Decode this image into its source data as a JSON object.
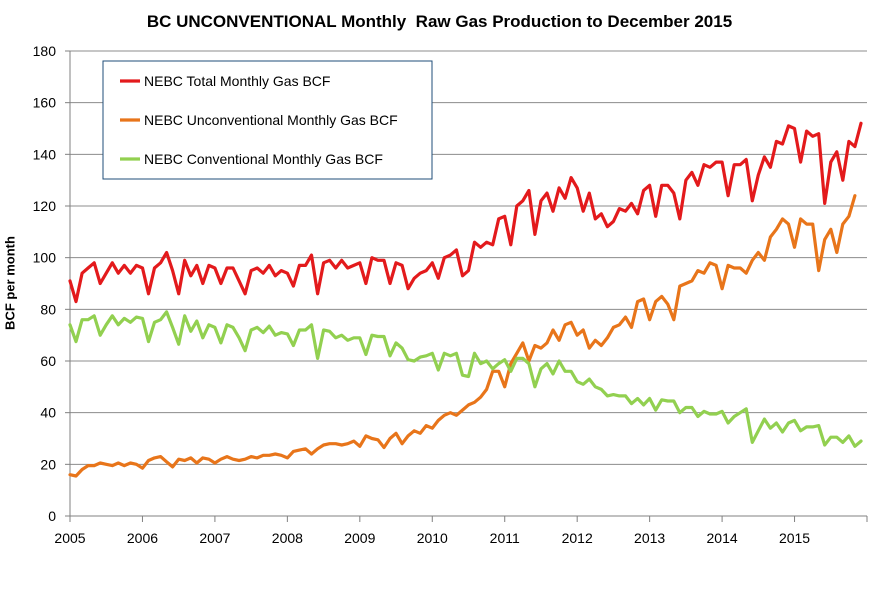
{
  "chart_data": {
    "type": "line",
    "title": "BC UNCONVENTIONAL Monthly  Raw Gas Production to December 2015",
    "xlabel": "",
    "ylabel": "BCF per month",
    "ylim": [
      0,
      180
    ],
    "yticks": [
      0,
      20,
      40,
      60,
      80,
      100,
      120,
      140,
      160,
      180
    ],
    "xticks": [
      "2005",
      "2006",
      "2007",
      "2008",
      "2009",
      "2010",
      "2011",
      "2012",
      "2013",
      "2014",
      "2015"
    ],
    "x_start_year": 2005,
    "x_end_year": 2016,
    "grid": "horizontal",
    "legend_position": "top-left",
    "series": [
      {
        "name": "NEBC Total Monthly Gas BCF",
        "color": "#e31a1c",
        "values": [
          91,
          83,
          94,
          96,
          98,
          90,
          94,
          98,
          94,
          97,
          94,
          97,
          96,
          86,
          96,
          98,
          102,
          95,
          86,
          99,
          93,
          97,
          90,
          97,
          96,
          90,
          96,
          96,
          91,
          86,
          95,
          96,
          94,
          97,
          93,
          95,
          94,
          89,
          97,
          97,
          101,
          86,
          98,
          99,
          96,
          99,
          96,
          97,
          98,
          90,
          100,
          99,
          99,
          90,
          98,
          97,
          88,
          92,
          94,
          95,
          98,
          92,
          100,
          101,
          103,
          93,
          95,
          106,
          104,
          106,
          105,
          115,
          116,
          105,
          120,
          122,
          126,
          109,
          122,
          125,
          118,
          127,
          123,
          131,
          127,
          118,
          125,
          115,
          117,
          112,
          114,
          119,
          118,
          121,
          117,
          126,
          128,
          116,
          128,
          128,
          125,
          115,
          130,
          133,
          128,
          136,
          135,
          137,
          137,
          124,
          136,
          136,
          138,
          122,
          132,
          139,
          135,
          145,
          144,
          151,
          150,
          137,
          149,
          147,
          148,
          121,
          137,
          141,
          130,
          145,
          143,
          152
        ]
      },
      {
        "name": "NEBC Unconventional Monthly Gas BCF",
        "color": "#e8751a",
        "values": [
          16,
          15.5,
          18,
          19.5,
          19.5,
          20.5,
          20,
          19.5,
          20.5,
          19.5,
          20.5,
          20,
          18.5,
          21.5,
          22.5,
          23,
          21,
          19,
          22,
          21.5,
          22.5,
          20.5,
          22.5,
          22,
          20.5,
          22,
          23,
          22,
          21.5,
          22,
          23,
          22.5,
          23.5,
          23.5,
          24,
          23.5,
          22.5,
          25,
          25.5,
          26,
          24,
          26,
          27.5,
          28,
          28,
          27.5,
          28,
          29,
          27,
          31,
          30,
          29.5,
          26.5,
          30,
          32,
          28,
          31,
          33,
          32,
          35,
          34,
          37,
          39,
          40,
          39,
          41,
          43,
          44,
          46,
          49,
          56,
          56,
          50,
          59,
          63,
          67,
          60,
          66,
          65,
          67,
          72,
          68,
          74,
          75,
          70,
          72,
          65,
          68,
          66,
          69,
          73,
          74,
          77,
          73,
          83,
          84,
          76,
          83,
          85,
          82,
          76,
          89,
          90,
          91,
          95,
          94,
          98,
          97,
          88,
          97,
          96,
          96,
          94,
          99,
          102,
          99,
          108,
          111,
          115,
          113,
          104,
          115,
          113,
          113,
          95,
          107,
          111,
          102,
          113,
          116,
          124
        ]
      },
      {
        "name": "NEBC Conventional Monthly Gas BCF",
        "color": "#92d050",
        "values": [
          74,
          67.5,
          76,
          76,
          77.5,
          70,
          74,
          77.5,
          74,
          76.5,
          75,
          77,
          76.5,
          67.5,
          75,
          76,
          79,
          73,
          66.5,
          77.5,
          71.5,
          75.5,
          69,
          74,
          73,
          67,
          74,
          73,
          69,
          64,
          72,
          73,
          71,
          73.5,
          70,
          71,
          70.5,
          66,
          72,
          72,
          74,
          61,
          72,
          71.5,
          69,
          70,
          68,
          69,
          69,
          62.5,
          70,
          69.5,
          69.5,
          62,
          67,
          65,
          60.5,
          60,
          61.5,
          62,
          63,
          56.5,
          63,
          62,
          63,
          54.5,
          54,
          63,
          59,
          60,
          57,
          59,
          60.5,
          56,
          61,
          61,
          59,
          50,
          57,
          59,
          55,
          60,
          56,
          56,
          52,
          51,
          53,
          50,
          49,
          46.5,
          47,
          46.5,
          46.5,
          43.5,
          45.5,
          43,
          45.5,
          41,
          45,
          44.5,
          44.5,
          40,
          42,
          42,
          38.5,
          40.5,
          39.5,
          39.5,
          40.5,
          36,
          38.5,
          40,
          41.5,
          28.5,
          33,
          37.5,
          34,
          36,
          32.5,
          36,
          37,
          33,
          34.5,
          34.5,
          35,
          27.5,
          30.5,
          30.5,
          28.5,
          31,
          27,
          29
        ]
      }
    ]
  }
}
